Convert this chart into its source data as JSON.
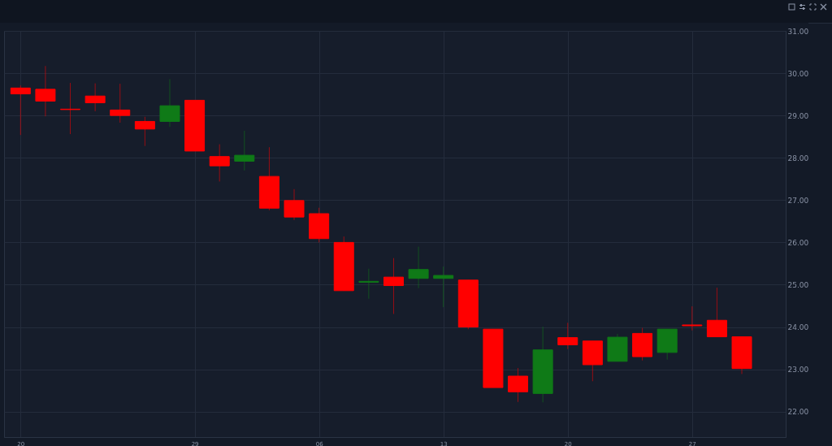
{
  "chart_data": {
    "type": "candlestick",
    "categories": [
      "20",
      null,
      null,
      null,
      null,
      null,
      null,
      "29",
      null,
      null,
      null,
      null,
      "06",
      null,
      null,
      null,
      null,
      "13",
      null,
      null,
      null,
      null,
      "20",
      null,
      null,
      null,
      null,
      "27",
      null,
      null
    ],
    "ohlc": [
      [
        29.65,
        29.71,
        28.54,
        29.51
      ],
      [
        29.62,
        30.17,
        28.98,
        29.34
      ],
      [
        29.15,
        29.77,
        28.56,
        29.14
      ],
      [
        29.46,
        29.76,
        29.1,
        29.3
      ],
      [
        29.13,
        29.75,
        28.83,
        29.0
      ],
      [
        28.86,
        28.97,
        28.28,
        28.68
      ],
      [
        28.86,
        29.86,
        28.73,
        29.23
      ],
      [
        29.36,
        29.36,
        28.16,
        28.16
      ],
      [
        28.03,
        28.32,
        27.44,
        27.81
      ],
      [
        27.92,
        28.64,
        27.7,
        28.06
      ],
      [
        27.56,
        28.25,
        26.76,
        26.81
      ],
      [
        26.99,
        27.26,
        26.53,
        26.6
      ],
      [
        26.68,
        26.82,
        26.0,
        26.09
      ],
      [
        26.0,
        26.14,
        24.86,
        24.86
      ],
      [
        25.06,
        25.38,
        24.67,
        25.08
      ],
      [
        25.18,
        25.63,
        24.31,
        24.98
      ],
      [
        25.15,
        25.9,
        24.92,
        25.36
      ],
      [
        25.15,
        25.43,
        24.47,
        25.22
      ],
      [
        25.11,
        25.11,
        23.95,
        24.0
      ],
      [
        23.95,
        23.95,
        22.57,
        22.57
      ],
      [
        22.84,
        23.03,
        22.23,
        22.47
      ],
      [
        22.43,
        24.01,
        22.22,
        23.46
      ],
      [
        23.75,
        24.1,
        23.48,
        23.58
      ],
      [
        23.67,
        23.67,
        22.72,
        23.11
      ],
      [
        23.19,
        23.84,
        23.19,
        23.76
      ],
      [
        23.85,
        23.98,
        23.21,
        23.3
      ],
      [
        23.4,
        23.95,
        23.23,
        23.95
      ],
      [
        24.05,
        24.49,
        23.92,
        24.03
      ],
      [
        24.16,
        24.93,
        23.77,
        23.77
      ],
      [
        23.77,
        23.77,
        22.89,
        23.02
      ]
    ],
    "colors": [
      "#ff0000",
      "#ff0000",
      "#ff0000",
      "#ff0000",
      "#ff0000",
      "#ff0000",
      "#0f7a17",
      "#ff0000",
      "#ff0000",
      "#0f7a17",
      "#ff0000",
      "#ff0000",
      "#ff0000",
      "#ff0000",
      "#0f7a17",
      "#ff0000",
      "#0f7a17",
      "#0f7a17",
      "#ff0000",
      "#ff0000",
      "#ff0000",
      "#0f7a17",
      "#ff0000",
      "#ff0000",
      "#0f7a17",
      "#ff0000",
      "#0f7a17",
      "#ff0000",
      "#ff0000",
      "#ff0000"
    ],
    "ylim": [
      21.4,
      31
    ],
    "yticks": [
      {
        "value": 22,
        "label": "22.00"
      },
      {
        "value": 23,
        "label": "23.00"
      },
      {
        "value": 24,
        "label": "24.00"
      },
      {
        "value": 25,
        "label": "25.00"
      },
      {
        "value": 26,
        "label": "26.00"
      },
      {
        "value": 27,
        "label": "27.00"
      },
      {
        "value": 28,
        "label": "28.00"
      },
      {
        "value": 29,
        "label": "29.00"
      },
      {
        "value": 30,
        "label": "30.00"
      },
      {
        "value": 31,
        "label": "31.00"
      }
    ],
    "grid": true
  }
}
